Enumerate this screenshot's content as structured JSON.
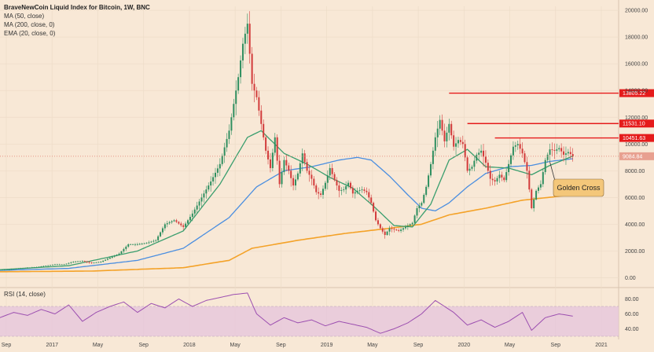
{
  "legend": {
    "title": "BraveNewCoin Liquid Index for Bitcoin, 1W, BNC",
    "ma50": "MA (50, close)",
    "ma200": "MA (200, close, 0)",
    "ema20": "EMA (20, close, 0)"
  },
  "rsi_legend": "RSI (14, close)",
  "callout": "Golden Cross",
  "colors": {
    "background": "#f8e8d6",
    "up": "#2f8f60",
    "down": "#d23b3b",
    "ma50": "#4a8ee0",
    "ma200": "#f4a228",
    "ema20": "#3a9e6e",
    "resistance": "#e51b1b",
    "rsi": "#9c4fb0",
    "rsi_band": "#e6c6dc",
    "callout_fill": "#f4c77a"
  },
  "chart_data": {
    "type": "candlestick",
    "x_ticks": [
      "Sep",
      "2017",
      "May",
      "Sep",
      "2018",
      "May",
      "Sep",
      "2019",
      "May",
      "Sep",
      "2020",
      "May",
      "Sep",
      "2021"
    ],
    "y_ticks": [
      "0.00",
      "2000.00",
      "4000.00",
      "6000.00",
      "8000.00",
      "10000.00",
      "12000.00",
      "14000.00",
      "16000.00",
      "18000.00",
      "20000.00"
    ],
    "ylim": [
      -500,
      20300
    ],
    "resistance_levels": [
      {
        "label": "13805.22",
        "value": 13805.22
      },
      {
        "label": "11531.10",
        "value": 11531.1
      },
      {
        "label": "10451.63",
        "value": 10451.63
      }
    ],
    "current_price": {
      "label": "9084.84",
      "value": 9084.84
    },
    "price_path": [
      [
        0,
        600
      ],
      [
        4,
        620
      ],
      [
        8,
        700
      ],
      [
        12,
        750
      ],
      [
        16,
        800
      ],
      [
        20,
        900
      ],
      [
        24,
        1000
      ],
      [
        28,
        1000
      ],
      [
        32,
        1200
      ],
      [
        36,
        1250
      ],
      [
        40,
        1100
      ],
      [
        44,
        1200
      ],
      [
        48,
        1500
      ],
      [
        52,
        1800
      ],
      [
        56,
        2500
      ],
      [
        60,
        2500
      ],
      [
        64,
        2600
      ],
      [
        68,
        2800
      ],
      [
        72,
        4000
      ],
      [
        76,
        4300
      ],
      [
        80,
        3800
      ],
      [
        84,
        4800
      ],
      [
        88,
        6000
      ],
      [
        92,
        7200
      ],
      [
        96,
        8500
      ],
      [
        100,
        11000
      ],
      [
        104,
        15000
      ],
      [
        106,
        17500
      ],
      [
        108,
        19000
      ],
      [
        110,
        14500
      ],
      [
        112,
        13500
      ],
      [
        114,
        11500
      ],
      [
        116,
        9500
      ],
      [
        118,
        8200
      ],
      [
        120,
        10500
      ],
      [
        122,
        7000
      ],
      [
        124,
        8800
      ],
      [
        126,
        8000
      ],
      [
        128,
        6900
      ],
      [
        130,
        7800
      ],
      [
        132,
        9300
      ],
      [
        134,
        8000
      ],
      [
        136,
        7400
      ],
      [
        138,
        6400
      ],
      [
        140,
        6200
      ],
      [
        142,
        7100
      ],
      [
        144,
        8200
      ],
      [
        146,
        7300
      ],
      [
        148,
        6500
      ],
      [
        150,
        6600
      ],
      [
        152,
        7100
      ],
      [
        154,
        6300
      ],
      [
        156,
        6500
      ],
      [
        158,
        6600
      ],
      [
        160,
        6400
      ],
      [
        162,
        5600
      ],
      [
        164,
        4300
      ],
      [
        166,
        3700
      ],
      [
        168,
        3200
      ],
      [
        170,
        3700
      ],
      [
        172,
        3600
      ],
      [
        174,
        3500
      ],
      [
        176,
        3700
      ],
      [
        178,
        3900
      ],
      [
        180,
        4100
      ],
      [
        182,
        5200
      ],
      [
        184,
        5600
      ],
      [
        186,
        6800
      ],
      [
        188,
        8500
      ],
      [
        190,
        10500
      ],
      [
        192,
        11800
      ],
      [
        194,
        10200
      ],
      [
        196,
        11500
      ],
      [
        198,
        9800
      ],
      [
        200,
        10300
      ],
      [
        202,
        10000
      ],
      [
        204,
        8000
      ],
      [
        206,
        8300
      ],
      [
        208,
        9200
      ],
      [
        210,
        9500
      ],
      [
        212,
        8600
      ],
      [
        214,
        7400
      ],
      [
        216,
        7200
      ],
      [
        218,
        7700
      ],
      [
        220,
        7300
      ],
      [
        222,
        8500
      ],
      [
        224,
        9800
      ],
      [
        226,
        10000
      ],
      [
        228,
        9300
      ],
      [
        230,
        8000
      ],
      [
        232,
        5200
      ],
      [
        234,
        6500
      ],
      [
        236,
        7000
      ],
      [
        238,
        8800
      ],
      [
        240,
        9600
      ],
      [
        242,
        9500
      ],
      [
        244,
        9700
      ],
      [
        246,
        9200
      ],
      [
        248,
        9400
      ],
      [
        250,
        9100
      ]
    ],
    "ma50_path": [
      [
        0,
        550
      ],
      [
        30,
        700
      ],
      [
        60,
        1300
      ],
      [
        80,
        2200
      ],
      [
        100,
        4500
      ],
      [
        112,
        6800
      ],
      [
        124,
        8000
      ],
      [
        136,
        8300
      ],
      [
        148,
        8800
      ],
      [
        156,
        9000
      ],
      [
        162,
        8800
      ],
      [
        170,
        7600
      ],
      [
        178,
        6200
      ],
      [
        184,
        5200
      ],
      [
        190,
        5000
      ],
      [
        196,
        5600
      ],
      [
        204,
        6800
      ],
      [
        212,
        7800
      ],
      [
        222,
        8300
      ],
      [
        232,
        8400
      ],
      [
        240,
        8700
      ],
      [
        250,
        8900
      ]
    ],
    "ma200_path": [
      [
        0,
        450
      ],
      [
        40,
        500
      ],
      [
        80,
        750
      ],
      [
        100,
        1300
      ],
      [
        110,
        2200
      ],
      [
        130,
        2800
      ],
      [
        150,
        3300
      ],
      [
        170,
        3700
      ],
      [
        184,
        4000
      ],
      [
        196,
        4700
      ],
      [
        212,
        5200
      ],
      [
        228,
        5800
      ],
      [
        250,
        6200
      ]
    ],
    "ema20_path": [
      [
        0,
        600
      ],
      [
        30,
        900
      ],
      [
        60,
        2000
      ],
      [
        80,
        3500
      ],
      [
        96,
        7000
      ],
      [
        108,
        10500
      ],
      [
        114,
        11000
      ],
      [
        124,
        9300
      ],
      [
        134,
        8500
      ],
      [
        144,
        7500
      ],
      [
        154,
        6700
      ],
      [
        164,
        5200
      ],
      [
        172,
        3900
      ],
      [
        180,
        3800
      ],
      [
        188,
        5500
      ],
      [
        196,
        8800
      ],
      [
        204,
        9600
      ],
      [
        212,
        8300
      ],
      [
        222,
        8200
      ],
      [
        232,
        7700
      ],
      [
        240,
        8400
      ],
      [
        250,
        9100
      ]
    ],
    "rsi": {
      "y_ticks": [
        "40.00",
        "60.00",
        "80.00"
      ],
      "ylim": [
        30,
        90
      ],
      "band": [
        30,
        70
      ],
      "path": [
        [
          0,
          55
        ],
        [
          6,
          62
        ],
        [
          12,
          58
        ],
        [
          18,
          66
        ],
        [
          24,
          60
        ],
        [
          30,
          72
        ],
        [
          36,
          50
        ],
        [
          42,
          62
        ],
        [
          48,
          70
        ],
        [
          54,
          76
        ],
        [
          60,
          62
        ],
        [
          66,
          74
        ],
        [
          72,
          68
        ],
        [
          78,
          80
        ],
        [
          84,
          70
        ],
        [
          90,
          78
        ],
        [
          96,
          82
        ],
        [
          102,
          86
        ],
        [
          108,
          88
        ],
        [
          112,
          60
        ],
        [
          118,
          45
        ],
        [
          124,
          55
        ],
        [
          130,
          48
        ],
        [
          136,
          52
        ],
        [
          142,
          44
        ],
        [
          148,
          50
        ],
        [
          154,
          46
        ],
        [
          160,
          42
        ],
        [
          166,
          34
        ],
        [
          172,
          40
        ],
        [
          178,
          48
        ],
        [
          184,
          60
        ],
        [
          190,
          78
        ],
        [
          194,
          70
        ],
        [
          198,
          62
        ],
        [
          204,
          45
        ],
        [
          210,
          52
        ],
        [
          216,
          42
        ],
        [
          222,
          50
        ],
        [
          228,
          62
        ],
        [
          232,
          38
        ],
        [
          238,
          55
        ],
        [
          244,
          60
        ],
        [
          250,
          57
        ]
      ]
    }
  }
}
